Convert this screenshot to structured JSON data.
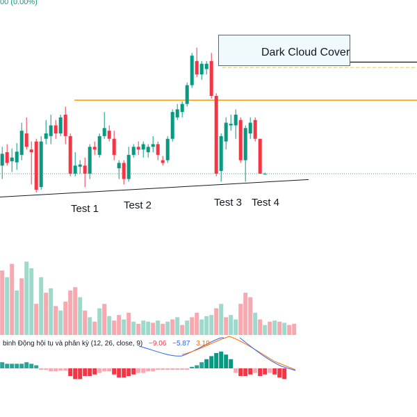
{
  "header": {
    "change_text": "00 (0.00%)"
  },
  "annotation": {
    "pattern_label": "Dark Cloud Cover"
  },
  "test_labels": [
    "Test 1",
    "Test 2",
    "Test 3",
    "Test 4"
  ],
  "macd_legend": {
    "title": "binh Động hội tụ và phân kỳ (12, 26, close, 9)",
    "hist": "−9.06",
    "macd": "−5.87",
    "signal": "3.19",
    "colors": {
      "hist": "#f23645",
      "macd": "#2962ff",
      "signal": "#ff6d00"
    }
  },
  "colors": {
    "up": "#089981",
    "down": "#f23645",
    "vol_up": "#9fd9cc",
    "vol_down": "#f7a9b0",
    "resistance": "#ff9800",
    "support": "#131722"
  },
  "chart_data": {
    "type": "candlestick",
    "candles": [
      {
        "o": 3.0,
        "h": 6.5,
        "l": 0.5,
        "c": 5.2
      },
      {
        "o": 5.5,
        "h": 7.0,
        "l": 3.0,
        "c": 3.5
      },
      {
        "o": 3.8,
        "h": 6.2,
        "l": 1.8,
        "c": 4.5
      },
      {
        "o": 3.6,
        "h": 7.2,
        "l": 2.2,
        "c": 5.6
      },
      {
        "o": 5.0,
        "h": 11.0,
        "l": 4.0,
        "c": 9.5
      },
      {
        "o": 9.0,
        "h": 12.0,
        "l": 6.0,
        "c": 6.5
      },
      {
        "o": 6.0,
        "h": 7.5,
        "l": -0.5,
        "c": 5.5
      },
      {
        "o": 7.5,
        "h": 8.0,
        "l": -2.0,
        "c": -1.5
      },
      {
        "o": -1.0,
        "h": 8.5,
        "l": -1.5,
        "c": 7.5
      },
      {
        "o": 8.0,
        "h": 11.5,
        "l": 7.0,
        "c": 9.0
      },
      {
        "o": 8.5,
        "h": 12.5,
        "l": 7.0,
        "c": 10.5
      },
      {
        "o": 10.5,
        "h": 11.5,
        "l": 8.0,
        "c": 9.0
      },
      {
        "o": 9.0,
        "h": 12.5,
        "l": 8.5,
        "c": 12.0
      },
      {
        "o": 12.5,
        "h": 14.0,
        "l": 7.0,
        "c": 8.5
      },
      {
        "o": 8.5,
        "h": 9.0,
        "l": 1.0,
        "c": 1.5
      },
      {
        "o": 1.5,
        "h": 5.5,
        "l": 1.0,
        "c": 3.0
      },
      {
        "o": 2.8,
        "h": 4.0,
        "l": 1.5,
        "c": 3.2
      },
      {
        "o": 3.0,
        "h": 4.5,
        "l": -1.0,
        "c": 1.5
      },
      {
        "o": 1.5,
        "h": 7.0,
        "l": 0.5,
        "c": 6.5
      },
      {
        "o": 6.5,
        "h": 7.5,
        "l": 5.0,
        "c": 6.0
      },
      {
        "o": 5.0,
        "h": 9.0,
        "l": 4.5,
        "c": 8.5
      },
      {
        "o": 8.5,
        "h": 13.0,
        "l": 8.0,
        "c": 10.0
      },
      {
        "o": 9.5,
        "h": 10.5,
        "l": 7.5,
        "c": 8.0
      },
      {
        "o": 8.0,
        "h": 9.5,
        "l": 4.0,
        "c": 5.0
      },
      {
        "o": 2.5,
        "h": 4.0,
        "l": 0.5,
        "c": 3.5
      },
      {
        "o": 3.5,
        "h": 4.0,
        "l": -0.5,
        "c": 0.5
      },
      {
        "o": 0.5,
        "h": 6.5,
        "l": 0.0,
        "c": 5.0
      },
      {
        "o": 5.0,
        "h": 7.0,
        "l": 4.5,
        "c": 6.5
      },
      {
        "o": 6.5,
        "h": 7.5,
        "l": 5.0,
        "c": 6.0
      },
      {
        "o": 6.0,
        "h": 7.5,
        "l": 4.5,
        "c": 7.0
      },
      {
        "o": 5.5,
        "h": 7.0,
        "l": 4.5,
        "c": 6.5
      },
      {
        "o": 6.5,
        "h": 8.5,
        "l": 5.5,
        "c": 7.0
      },
      {
        "o": 7.0,
        "h": 7.5,
        "l": 4.0,
        "c": 5.0
      },
      {
        "o": 4.0,
        "h": 4.8,
        "l": 3.0,
        "c": 3.5
      },
      {
        "o": 4.0,
        "h": 8.5,
        "l": 3.5,
        "c": 8.0
      },
      {
        "o": 8.0,
        "h": 13.5,
        "l": 7.5,
        "c": 13.0
      },
      {
        "o": 12.0,
        "h": 14.5,
        "l": 11.5,
        "c": 13.5
      },
      {
        "o": 13.0,
        "h": 15.0,
        "l": 12.0,
        "c": 14.5
      },
      {
        "o": 14.5,
        "h": 18.5,
        "l": 14.0,
        "c": 18.0
      },
      {
        "o": 18.0,
        "h": 24.0,
        "l": 17.5,
        "c": 23.5
      },
      {
        "o": 22.5,
        "h": 25.0,
        "l": 19.5,
        "c": 20.0
      },
      {
        "o": 20.0,
        "h": 22.5,
        "l": 19.0,
        "c": 22.0
      },
      {
        "o": 21.0,
        "h": 22.5,
        "l": 20.0,
        "c": 22.0
      },
      {
        "o": 22.5,
        "h": 24.0,
        "l": 15.5,
        "c": 16.0
      },
      {
        "o": 16.0,
        "h": 16.5,
        "l": 1.0,
        "c": 1.5
      },
      {
        "o": 2.0,
        "h": 9.0,
        "l": 0.0,
        "c": 8.5
      },
      {
        "o": 7.5,
        "h": 12.0,
        "l": 6.0,
        "c": 11.0
      },
      {
        "o": 10.5,
        "h": 12.5,
        "l": 9.5,
        "c": 10.8
      },
      {
        "o": 10.5,
        "h": 13.5,
        "l": 8.0,
        "c": 12.5
      },
      {
        "o": 11.5,
        "h": 12.0,
        "l": 3.5,
        "c": 4.0
      },
      {
        "o": 4.0,
        "h": 10.5,
        "l": 0.0,
        "c": 10.0
      },
      {
        "o": 9.0,
        "h": 12.0,
        "l": 8.0,
        "c": 11.0
      },
      {
        "o": 11.5,
        "h": 12.0,
        "l": 7.5,
        "c": 8.0
      },
      {
        "o": 8.0,
        "h": 8.0,
        "l": 1.5,
        "c": 1.5
      },
      {
        "o": 1.5,
        "h": 1.7,
        "l": 1.3,
        "c": 1.5
      }
    ],
    "price_range": [
      -5,
      30
    ],
    "resistance_level": 15.2,
    "dashed_level": 21.3,
    "cloud_cover_level": 22.3,
    "current_level": 1.5,
    "support_trendline": [
      [
        -3.0,
        -3.0
      ],
      [
        63,
        0.4
      ]
    ],
    "volume": [
      {
        "v": 58,
        "up": false
      },
      {
        "v": 52,
        "up": true
      },
      {
        "v": 64,
        "up": false
      },
      {
        "v": 40,
        "up": true
      },
      {
        "v": 51,
        "up": false
      },
      {
        "v": 66,
        "up": true
      },
      {
        "v": 60,
        "up": true
      },
      {
        "v": 28,
        "up": false
      },
      {
        "v": 52,
        "up": true
      },
      {
        "v": 38,
        "up": false
      },
      {
        "v": 42,
        "up": true
      },
      {
        "v": 26,
        "up": false
      },
      {
        "v": 22,
        "up": true
      },
      {
        "v": 30,
        "up": false
      },
      {
        "v": 40,
        "up": false
      },
      {
        "v": 43,
        "up": false
      },
      {
        "v": 34,
        "up": true
      },
      {
        "v": 22,
        "up": false
      },
      {
        "v": 16,
        "up": true
      },
      {
        "v": 12,
        "up": false
      },
      {
        "v": 24,
        "up": true
      },
      {
        "v": 28,
        "up": false
      },
      {
        "v": 17,
        "up": true
      },
      {
        "v": 13,
        "up": false
      },
      {
        "v": 18,
        "up": false
      },
      {
        "v": 14,
        "up": true
      },
      {
        "v": 20,
        "up": false
      },
      {
        "v": 12,
        "up": true
      },
      {
        "v": 10,
        "up": false
      },
      {
        "v": 13,
        "up": true
      },
      {
        "v": 12,
        "up": true
      },
      {
        "v": 11,
        "up": false
      },
      {
        "v": 13,
        "up": true
      },
      {
        "v": 10,
        "up": false
      },
      {
        "v": 12,
        "up": true
      },
      {
        "v": 14,
        "up": false
      },
      {
        "v": 16,
        "up": true
      },
      {
        "v": 9,
        "up": false
      },
      {
        "v": 13,
        "up": true
      },
      {
        "v": 16,
        "up": false
      },
      {
        "v": 20,
        "up": false
      },
      {
        "v": 14,
        "up": true
      },
      {
        "v": 17,
        "up": true
      },
      {
        "v": 18,
        "up": true
      },
      {
        "v": 24,
        "up": false
      },
      {
        "v": 28,
        "up": true
      },
      {
        "v": 16,
        "up": false
      },
      {
        "v": 18,
        "up": true
      },
      {
        "v": 14,
        "up": true
      },
      {
        "v": 28,
        "up": false
      },
      {
        "v": 38,
        "up": false
      },
      {
        "v": 34,
        "up": false
      },
      {
        "v": 20,
        "up": true
      },
      {
        "v": 14,
        "up": false
      },
      {
        "v": 9,
        "up": true
      },
      {
        "v": 12,
        "up": false
      },
      {
        "v": 13,
        "up": true
      },
      {
        "v": 12,
        "up": false
      },
      {
        "v": 11,
        "up": true
      },
      {
        "v": 9,
        "up": false
      },
      {
        "v": 10,
        "up": false
      }
    ],
    "macd_hist": [
      {
        "v": 4,
        "up": true
      },
      {
        "v": 3,
        "up": true
      },
      {
        "v": 3,
        "up": true
      },
      {
        "v": 3,
        "up": true
      },
      {
        "v": 3,
        "up": true
      },
      {
        "v": 4,
        "up": true
      },
      {
        "v": 3,
        "up": true
      },
      {
        "v": 2,
        "up": true
      },
      {
        "v": -1,
        "up": false
      },
      {
        "v": -1,
        "up": false
      },
      {
        "v": -2,
        "up": false
      },
      {
        "v": -2,
        "up": false
      },
      {
        "v": -1.5,
        "up": false
      },
      {
        "v": -1.5,
        "up": false
      },
      {
        "v": -5,
        "up": false
      },
      {
        "v": -7,
        "up": false
      },
      {
        "v": -7,
        "up": false
      },
      {
        "v": -5,
        "up": false
      },
      {
        "v": -5,
        "up": false
      },
      {
        "v": -4,
        "up": false
      },
      {
        "v": -3,
        "up": false
      },
      {
        "v": -2,
        "up": false
      },
      {
        "v": -2,
        "up": false
      },
      {
        "v": -4,
        "up": false
      },
      {
        "v": -6,
        "up": false
      },
      {
        "v": -6,
        "up": false
      },
      {
        "v": -5,
        "up": false
      },
      {
        "v": -4,
        "up": false
      },
      {
        "v": -3,
        "up": false
      },
      {
        "v": -3,
        "up": false
      },
      {
        "v": -2,
        "up": false
      },
      {
        "v": -2,
        "up": false
      },
      {
        "v": -1,
        "up": false
      },
      {
        "v": -1,
        "up": false
      },
      {
        "v": -1,
        "up": false
      },
      {
        "v": -1,
        "up": false
      },
      {
        "v": -1,
        "up": false
      },
      {
        "v": -1,
        "up": false
      },
      {
        "v": -1,
        "up": false
      },
      {
        "v": 1,
        "up": true
      },
      {
        "v": 2,
        "up": true
      },
      {
        "v": 4,
        "up": true
      },
      {
        "v": 6,
        "up": true
      },
      {
        "v": 8,
        "up": true
      },
      {
        "v": 10,
        "up": true
      },
      {
        "v": 11,
        "up": true
      },
      {
        "v": 9,
        "up": true
      },
      {
        "v": 6,
        "up": true
      },
      {
        "v": -3,
        "up": false
      },
      {
        "v": -5,
        "up": false
      },
      {
        "v": -5,
        "up": false
      },
      {
        "v": -4,
        "up": false
      },
      {
        "v": -3,
        "up": false
      },
      {
        "v": -5,
        "up": false
      },
      {
        "v": -4,
        "up": false
      },
      {
        "v": -3,
        "up": false
      },
      {
        "v": -4,
        "up": false
      },
      {
        "v": -6,
        "up": false
      },
      {
        "v": -7,
        "up": false
      }
    ],
    "macd_line": [
      [
        3.2,
        -0.7
      ],
      [
        7.2,
        -0.2
      ],
      [
        11.2,
        0.5
      ],
      [
        15.2,
        0.0
      ],
      [
        19.2,
        -0.3
      ],
      [
        23.2,
        -0.7
      ],
      [
        25.2,
        -1.0
      ]
    ],
    "signal_line": [
      [
        3.2,
        0.4
      ],
      [
        7.2,
        0.3
      ],
      [
        11.2,
        0.6
      ],
      [
        15.2,
        1.8
      ],
      [
        19.2,
        0.3
      ],
      [
        23.2,
        -0.5
      ],
      [
        25.2,
        -1.1
      ]
    ]
  }
}
